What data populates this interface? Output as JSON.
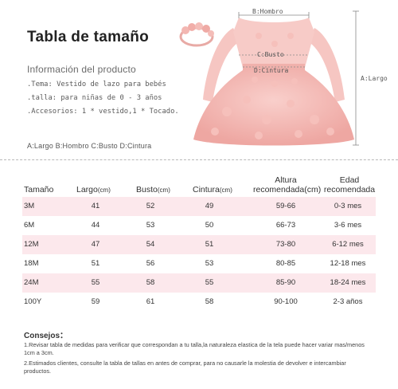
{
  "title": "Tabla de tamaño",
  "subtitle": "Información del producto",
  "info": [
    ".Tema: Vestido de lazo para bebés",
    ".talla: para niñas de 0 - 3 años",
    ".Accesorios: 1 * vestido,1 * Tocado."
  ],
  "legend": "A:Largo B:Hombro C:Busto D:Cintura",
  "dress_labels": {
    "hombro": "B:Hombro",
    "busto": "C:Busto",
    "cintura": "D:Cintura",
    "largo": "A:Largo"
  },
  "colors": {
    "stripe": "#fce8ec",
    "dress": "#f4b9b5",
    "dress_dark": "#e99f9b"
  },
  "table": {
    "headers": {
      "size": "Tamaño",
      "largo": "Largo",
      "busto": "Busto",
      "cintura": "Cintura",
      "unit": "(cm)",
      "altura_1": "Altura",
      "altura_2": "recomendada(cm)",
      "edad_1": "Edad",
      "edad_2": "recomendada"
    },
    "rows": [
      [
        "3M",
        "41",
        "52",
        "49",
        "59-66",
        "0-3 mes"
      ],
      [
        "6M",
        "44",
        "53",
        "50",
        "66-73",
        "3-6 mes"
      ],
      [
        "12M",
        "47",
        "54",
        "51",
        "73-80",
        "6-12 mes"
      ],
      [
        "18M",
        "51",
        "56",
        "53",
        "80-85",
        "12-18 mes"
      ],
      [
        "24M",
        "55",
        "58",
        "55",
        "85-90",
        "18-24 mes"
      ],
      [
        "100Y",
        "59",
        "61",
        "58",
        "90-100",
        "2-3 años"
      ]
    ]
  },
  "tips": {
    "title": "Consejos：",
    "items": [
      "1.Revisar tabla de medidas para verificar que correspondan a tu talla,la naturaleza elastica de la tela puede hacer variar mas/menos 1cm a 3cm.",
      "2.Estimados clientes, consulte la tabla de tallas en antes de comprar, para no causarle la molestia de devolver e intercambiar productos."
    ]
  }
}
